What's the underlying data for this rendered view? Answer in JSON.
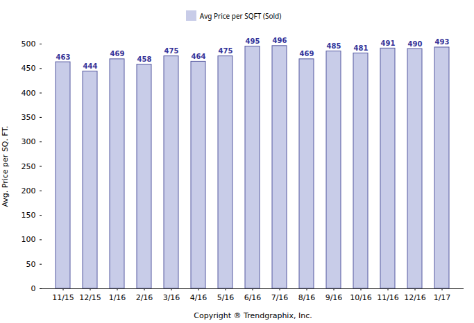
{
  "chart_data": {
    "type": "bar",
    "categories": [
      "11/15",
      "12/15",
      "1/16",
      "2/16",
      "3/16",
      "4/16",
      "5/16",
      "6/16",
      "7/16",
      "8/16",
      "9/16",
      "10/16",
      "11/16",
      "12/16",
      "1/17"
    ],
    "series": [
      {
        "name": "Avg Price per SQFT (Sold)",
        "color": "#c8cce8",
        "values": [
          463,
          444,
          469,
          458,
          475,
          464,
          475,
          495,
          496,
          469,
          485,
          481,
          491,
          490,
          493
        ]
      }
    ],
    "xlabel": "Copyright ® Trendgraphix, Inc.",
    "ylabel": "Avg. Price per SQ. FT.",
    "ylim": [
      0,
      500
    ],
    "yticks": [
      0,
      50,
      100,
      150,
      200,
      250,
      300,
      350,
      400,
      450,
      500
    ],
    "grid": false,
    "legend": "top",
    "data_labels": true
  }
}
